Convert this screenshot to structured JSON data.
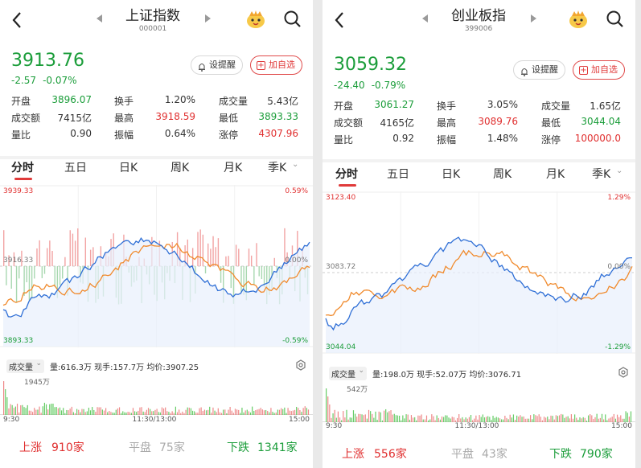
{
  "panels": [
    {
      "title": "上证指数",
      "code": "000001",
      "price": "3913.76",
      "change": "-2.57",
      "change_pct": "-0.07%",
      "remind_label": "设提醒",
      "add_fav_label": "加自选",
      "stats": [
        [
          {
            "k": "开盘",
            "v": "3896.07",
            "c": "green"
          },
          {
            "k": "换手",
            "v": "1.20%",
            "c": ""
          },
          {
            "k": "成交量",
            "v": "5.43亿",
            "c": ""
          }
        ],
        [
          {
            "k": "成交额",
            "v": "7415亿",
            "c": ""
          },
          {
            "k": "最高",
            "v": "3918.59",
            "c": "red"
          },
          {
            "k": "最低",
            "v": "3893.33",
            "c": "green"
          }
        ],
        [
          {
            "k": "量比",
            "v": "0.90",
            "c": ""
          },
          {
            "k": "振幅",
            "v": "0.64%",
            "c": ""
          },
          {
            "k": "涨停",
            "v": "4307.96",
            "c": "red"
          }
        ]
      ],
      "tabs": [
        "分时",
        "五日",
        "日K",
        "周K",
        "月K",
        "季K"
      ],
      "chart_top_left": "3939.33",
      "chart_top_right": "0.59%",
      "chart_mid_left": "3916.33",
      "chart_mid_right": "0.00%",
      "chart_bottom_left": "3893.33",
      "chart_bottom_right": "-0.59%",
      "vol_selector": "成交量",
      "vol_info": "量:616.3万  现手:157.7万  均价:3907.25",
      "vol_max": "1945万",
      "time_start": "9:30",
      "time_mid": "11:30/13:00",
      "time_end": "15:00",
      "up_label": "上涨",
      "up_count": "910家",
      "flat_label": "平盘",
      "flat_count": "75家",
      "down_label": "下跌",
      "down_count": "1341家"
    },
    {
      "title": "创业板指",
      "code": "399006",
      "price": "3059.32",
      "change": "-24.40",
      "change_pct": "-0.79%",
      "remind_label": "设提醒",
      "add_fav_label": "加自选",
      "stats": [
        [
          {
            "k": "开盘",
            "v": "3061.27",
            "c": "green"
          },
          {
            "k": "换手",
            "v": "3.05%",
            "c": ""
          },
          {
            "k": "成交量",
            "v": "1.65亿",
            "c": ""
          }
        ],
        [
          {
            "k": "成交额",
            "v": "4165亿",
            "c": ""
          },
          {
            "k": "最高",
            "v": "3089.76",
            "c": "red"
          },
          {
            "k": "最低",
            "v": "3044.04",
            "c": "green"
          }
        ],
        [
          {
            "k": "量比",
            "v": "0.92",
            "c": ""
          },
          {
            "k": "振幅",
            "v": "1.48%",
            "c": ""
          },
          {
            "k": "涨停",
            "v": "100000.0",
            "c": "red"
          }
        ]
      ],
      "tabs": [
        "分时",
        "五日",
        "日K",
        "周K",
        "月K",
        "季K"
      ],
      "chart_top_left": "3123.40",
      "chart_top_right": "1.29%",
      "chart_mid_left": "3083.72",
      "chart_mid_right": "0.00%",
      "chart_bottom_left": "3044.04",
      "chart_bottom_right": "-1.29%",
      "vol_selector": "成交量",
      "vol_info": "量:198.0万  现手:52.07万  均价:3076.71",
      "vol_max": "542万",
      "time_start": "9:30",
      "time_mid": "11:30/13:00",
      "time_end": "15:00",
      "up_label": "上涨",
      "up_count": "556家",
      "flat_label": "平盘",
      "flat_count": "43家",
      "down_label": "下跌",
      "down_count": "790家"
    }
  ],
  "colors": {
    "up": "#e02f2f",
    "down": "#1b9d3a",
    "price_line": "#2f6fd6",
    "avg_line": "#f08a2c"
  }
}
